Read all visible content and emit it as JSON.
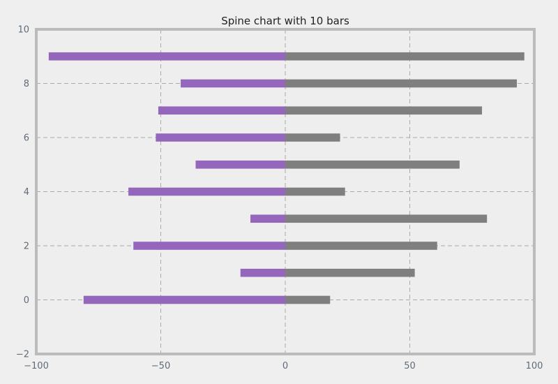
{
  "chart_data": {
    "type": "bar",
    "orientation": "horizontal",
    "title": "Spine chart with 10 bars",
    "xlabel": "",
    "ylabel": "",
    "xlim": [
      -100,
      100
    ],
    "ylim": [
      -2,
      10
    ],
    "xticks": [
      -100,
      -50,
      0,
      50,
      100
    ],
    "yticks": [
      -2,
      0,
      2,
      4,
      6,
      8,
      10
    ],
    "grid": true,
    "categories": [
      0,
      1,
      2,
      3,
      4,
      5,
      6,
      7,
      8,
      9
    ],
    "series": [
      {
        "color": "#9467bd",
        "values": [
          -81,
          -18,
          -61,
          -14,
          -63,
          -36,
          -52,
          -51,
          -42,
          -95
        ]
      },
      {
        "color": "#7f7f7f",
        "values": [
          18,
          52,
          61,
          81,
          24,
          70,
          22,
          79,
          93,
          96
        ]
      }
    ]
  },
  "colors": {
    "background": "#efefef",
    "plot_area": "#eeeeee",
    "frame": "#bbbbbb",
    "grid": "#aaaaaa",
    "tick_text": "#5f6b78",
    "title_text": "#222222"
  }
}
